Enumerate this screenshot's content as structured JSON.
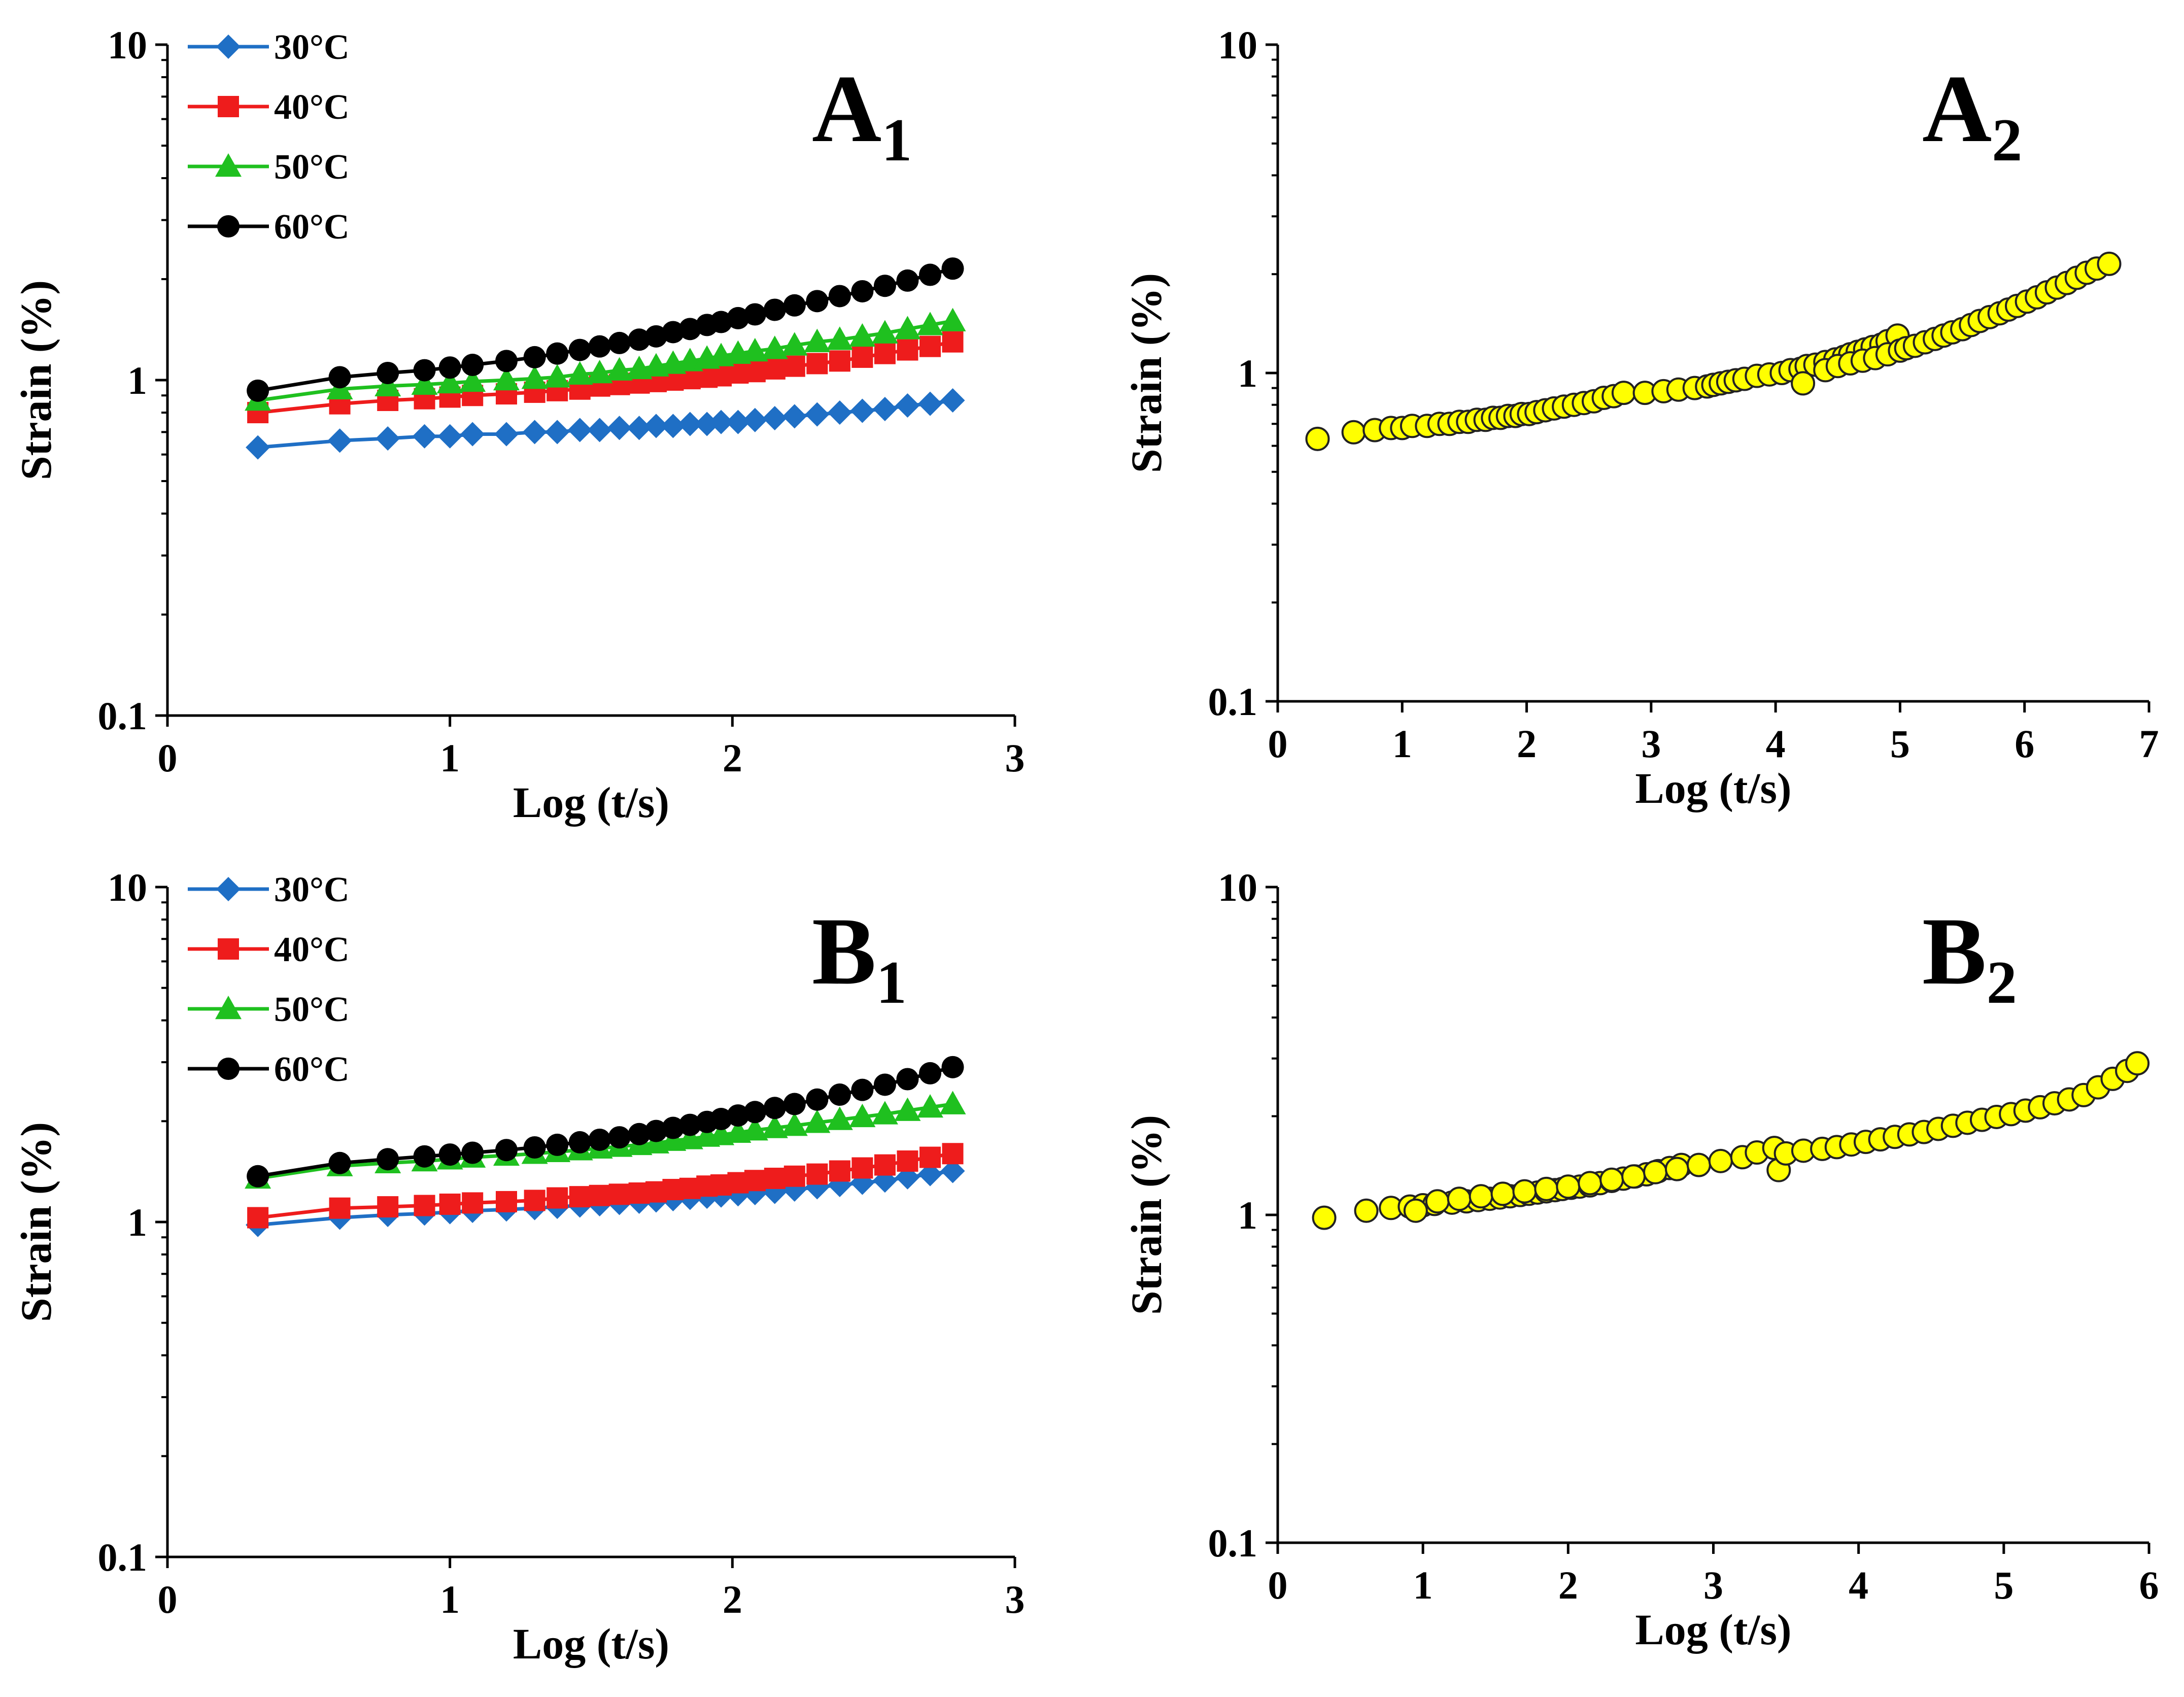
{
  "chart_data": [
    {
      "id": "A1",
      "type": "line",
      "panel_label": "A",
      "panel_sub": "1",
      "xlabel": "Log (t/s)",
      "ylabel": "Strain (%)",
      "yscale": "log",
      "xlim": [
        0,
        3
      ],
      "ylim": [
        0.1,
        10
      ],
      "xticks": [
        "0",
        "1",
        "2",
        "3"
      ],
      "yticks": [
        "0.1",
        "1",
        "10"
      ],
      "legend_position": "top-left",
      "x": [
        0.32,
        0.61,
        0.78,
        0.91,
        1.0,
        1.08,
        1.2,
        1.3,
        1.38,
        1.46,
        1.53,
        1.6,
        1.67,
        1.73,
        1.79,
        1.85,
        1.91,
        1.96,
        2.02,
        2.08,
        2.15,
        2.22,
        2.3,
        2.38,
        2.46,
        2.54,
        2.62,
        2.7,
        2.78
      ],
      "series": [
        {
          "name": "30°C",
          "color": "#1f6fc5",
          "marker": "diamond",
          "values": [
            0.63,
            0.66,
            0.67,
            0.68,
            0.68,
            0.69,
            0.69,
            0.7,
            0.7,
            0.71,
            0.71,
            0.72,
            0.72,
            0.73,
            0.73,
            0.74,
            0.74,
            0.75,
            0.75,
            0.76,
            0.77,
            0.78,
            0.79,
            0.8,
            0.81,
            0.82,
            0.84,
            0.85,
            0.87
          ]
        },
        {
          "name": "40°C",
          "color": "#ee1c1c",
          "marker": "square",
          "values": [
            0.8,
            0.85,
            0.87,
            0.88,
            0.89,
            0.9,
            0.91,
            0.92,
            0.93,
            0.94,
            0.96,
            0.97,
            0.98,
            0.99,
            1.0,
            1.01,
            1.02,
            1.03,
            1.05,
            1.06,
            1.08,
            1.1,
            1.12,
            1.14,
            1.17,
            1.2,
            1.23,
            1.26,
            1.3
          ]
        },
        {
          "name": "50°C",
          "color": "#1fc01f",
          "marker": "triangle",
          "values": [
            0.87,
            0.94,
            0.96,
            0.97,
            0.98,
            0.99,
            1.0,
            1.01,
            1.02,
            1.04,
            1.05,
            1.07,
            1.08,
            1.1,
            1.12,
            1.14,
            1.16,
            1.18,
            1.2,
            1.22,
            1.24,
            1.27,
            1.3,
            1.32,
            1.35,
            1.38,
            1.42,
            1.46,
            1.5
          ]
        },
        {
          "name": "60°C",
          "color": "#000000",
          "marker": "circle",
          "values": [
            0.93,
            1.02,
            1.05,
            1.07,
            1.09,
            1.11,
            1.14,
            1.17,
            1.2,
            1.23,
            1.26,
            1.29,
            1.32,
            1.35,
            1.39,
            1.42,
            1.46,
            1.49,
            1.53,
            1.57,
            1.62,
            1.67,
            1.72,
            1.78,
            1.84,
            1.91,
            1.98,
            2.06,
            2.15
          ]
        }
      ]
    },
    {
      "id": "A2",
      "type": "scatter",
      "panel_label": "A",
      "panel_sub": "2",
      "xlabel": "Log (t/s)",
      "ylabel": "Strain (%)",
      "yscale": "log",
      "xlim": [
        0,
        7
      ],
      "ylim": [
        0.1,
        10
      ],
      "xticks": [
        "0",
        "1",
        "2",
        "3",
        "4",
        "5",
        "6",
        "7"
      ],
      "yticks": [
        "0.1",
        "1",
        "10"
      ],
      "marker_color": "#ffff00",
      "x": [
        0.32,
        0.61,
        0.78,
        0.91,
        1.0,
        1.08,
        1.2,
        1.3,
        1.38,
        1.46,
        1.53,
        1.6,
        1.67,
        1.73,
        1.79,
        1.85,
        1.91,
        1.96,
        2.02,
        2.08,
        2.15,
        2.22,
        2.3,
        2.38,
        2.46,
        2.54,
        2.62,
        2.7,
        2.78,
        2.95,
        3.1,
        3.22,
        3.35,
        3.45,
        3.5,
        3.56,
        3.62,
        3.68,
        3.75,
        3.85,
        3.95,
        4.05,
        4.12,
        4.2,
        4.25,
        4.32,
        4.4,
        4.48,
        4.55,
        4.6,
        4.66,
        4.72,
        4.78,
        4.85,
        4.9,
        4.98,
        4.22,
        4.4,
        4.5,
        4.6,
        4.7,
        4.8,
        4.9,
        5.0,
        5.05,
        5.12,
        5.2,
        5.28,
        5.35,
        5.42,
        5.5,
        5.57,
        5.64,
        5.72,
        5.8,
        5.87,
        5.94,
        6.02,
        6.1,
        6.18,
        6.26,
        6.34,
        6.42,
        6.5,
        6.58,
        6.68
      ],
      "values": [
        0.63,
        0.66,
        0.67,
        0.68,
        0.68,
        0.69,
        0.69,
        0.7,
        0.7,
        0.71,
        0.71,
        0.72,
        0.72,
        0.73,
        0.73,
        0.74,
        0.74,
        0.75,
        0.75,
        0.76,
        0.77,
        0.78,
        0.79,
        0.8,
        0.81,
        0.82,
        0.84,
        0.85,
        0.87,
        0.87,
        0.88,
        0.89,
        0.9,
        0.91,
        0.92,
        0.93,
        0.94,
        0.95,
        0.96,
        0.98,
        0.99,
        1.0,
        1.02,
        1.03,
        1.05,
        1.06,
        1.08,
        1.1,
        1.12,
        1.14,
        1.16,
        1.18,
        1.2,
        1.22,
        1.25,
        1.3,
        0.93,
        1.02,
        1.05,
        1.07,
        1.09,
        1.11,
        1.14,
        1.17,
        1.19,
        1.21,
        1.24,
        1.27,
        1.3,
        1.33,
        1.36,
        1.4,
        1.44,
        1.48,
        1.52,
        1.56,
        1.6,
        1.65,
        1.7,
        1.76,
        1.82,
        1.88,
        1.95,
        2.02,
        2.08,
        2.15
      ]
    },
    {
      "id": "B1",
      "type": "line",
      "panel_label": "B",
      "panel_sub": "1",
      "xlabel": "Log (t/s)",
      "ylabel": "Strain (%)",
      "yscale": "log",
      "xlim": [
        0,
        3
      ],
      "ylim": [
        0.1,
        10
      ],
      "xticks": [
        "0",
        "1",
        "2",
        "3"
      ],
      "yticks": [
        "0.1",
        "1",
        "10"
      ],
      "legend_position": "top-left",
      "x": [
        0.32,
        0.61,
        0.78,
        0.91,
        1.0,
        1.08,
        1.2,
        1.3,
        1.38,
        1.46,
        1.53,
        1.6,
        1.67,
        1.73,
        1.79,
        1.85,
        1.91,
        1.96,
        2.02,
        2.08,
        2.15,
        2.22,
        2.3,
        2.38,
        2.46,
        2.54,
        2.62,
        2.7,
        2.78
      ],
      "series": [
        {
          "name": "30°C",
          "color": "#1f6fc5",
          "marker": "diamond",
          "values": [
            0.98,
            1.03,
            1.05,
            1.06,
            1.07,
            1.08,
            1.09,
            1.1,
            1.11,
            1.12,
            1.13,
            1.14,
            1.15,
            1.16,
            1.17,
            1.18,
            1.19,
            1.2,
            1.21,
            1.22,
            1.23,
            1.25,
            1.27,
            1.29,
            1.31,
            1.33,
            1.36,
            1.39,
            1.42
          ]
        },
        {
          "name": "40°C",
          "color": "#ee1c1c",
          "marker": "square",
          "values": [
            1.03,
            1.1,
            1.11,
            1.12,
            1.13,
            1.14,
            1.15,
            1.16,
            1.18,
            1.19,
            1.2,
            1.21,
            1.22,
            1.23,
            1.25,
            1.26,
            1.28,
            1.29,
            1.31,
            1.33,
            1.35,
            1.37,
            1.39,
            1.42,
            1.45,
            1.48,
            1.52,
            1.56,
            1.6
          ]
        },
        {
          "name": "50°C",
          "color": "#1fc01f",
          "marker": "triangle",
          "values": [
            1.35,
            1.47,
            1.5,
            1.52,
            1.54,
            1.56,
            1.58,
            1.6,
            1.62,
            1.64,
            1.66,
            1.68,
            1.7,
            1.72,
            1.75,
            1.77,
            1.8,
            1.82,
            1.85,
            1.88,
            1.91,
            1.94,
            1.98,
            2.02,
            2.06,
            2.1,
            2.15,
            2.2,
            2.25
          ]
        },
        {
          "name": "60°C",
          "color": "#000000",
          "marker": "circle",
          "values": [
            1.37,
            1.5,
            1.54,
            1.57,
            1.59,
            1.61,
            1.64,
            1.67,
            1.7,
            1.73,
            1.76,
            1.79,
            1.83,
            1.87,
            1.91,
            1.95,
            1.99,
            2.03,
            2.08,
            2.13,
            2.19,
            2.25,
            2.32,
            2.4,
            2.48,
            2.57,
            2.67,
            2.78,
            2.9
          ]
        }
      ]
    },
    {
      "id": "B2",
      "type": "scatter",
      "panel_label": "B",
      "panel_sub": "2",
      "xlabel": "Log (t/s)",
      "ylabel": "Strain (%)",
      "yscale": "log",
      "xlim": [
        0,
        6
      ],
      "ylim": [
        0.1,
        10
      ],
      "xticks": [
        "0",
        "1",
        "2",
        "3",
        "4",
        "5",
        "6"
      ],
      "yticks": [
        "0.1",
        "1",
        "10"
      ],
      "marker_color": "#ffff00",
      "x": [
        0.32,
        0.61,
        0.78,
        0.91,
        1.0,
        1.08,
        1.2,
        1.3,
        1.38,
        1.46,
        1.53,
        1.6,
        1.67,
        1.73,
        1.79,
        1.85,
        1.91,
        1.96,
        2.02,
        2.08,
        2.15,
        2.22,
        2.3,
        2.38,
        2.46,
        2.54,
        2.62,
        2.7,
        2.78,
        0.95,
        1.1,
        1.25,
        1.4,
        1.55,
        1.7,
        1.85,
        2.0,
        2.15,
        2.3,
        2.45,
        2.6,
        2.75,
        2.9,
        3.05,
        3.2,
        3.3,
        3.42,
        3.45,
        3.5,
        3.62,
        3.75,
        3.85,
        3.95,
        4.05,
        4.15,
        4.25,
        4.35,
        4.45,
        4.55,
        4.65,
        4.75,
        4.85,
        4.95,
        5.05,
        5.15,
        5.25,
        5.35,
        5.45,
        5.55,
        5.65,
        5.75,
        5.85,
        5.92
      ],
      "values": [
        0.98,
        1.03,
        1.05,
        1.06,
        1.07,
        1.08,
        1.09,
        1.1,
        1.11,
        1.12,
        1.13,
        1.14,
        1.15,
        1.16,
        1.17,
        1.18,
        1.19,
        1.2,
        1.21,
        1.22,
        1.23,
        1.25,
        1.27,
        1.29,
        1.31,
        1.33,
        1.36,
        1.39,
        1.42,
        1.03,
        1.1,
        1.12,
        1.14,
        1.16,
        1.18,
        1.2,
        1.22,
        1.25,
        1.28,
        1.31,
        1.35,
        1.38,
        1.42,
        1.46,
        1.5,
        1.55,
        1.6,
        1.37,
        1.54,
        1.57,
        1.59,
        1.61,
        1.64,
        1.67,
        1.7,
        1.73,
        1.76,
        1.79,
        1.83,
        1.87,
        1.91,
        1.95,
        1.99,
        2.03,
        2.08,
        2.13,
        2.19,
        2.25,
        2.32,
        2.45,
        2.6,
        2.75,
        2.9
      ]
    }
  ]
}
